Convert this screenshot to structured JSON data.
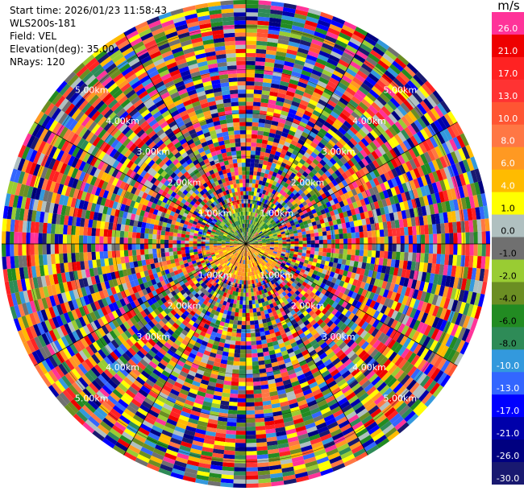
{
  "header": {
    "start_time": "Start time: 2026/01/23 11:58:43",
    "instrument": "WLS200s-181",
    "field": "Field: VEL",
    "elevation": "Elevation(deg): 35.00",
    "nrays": "NRays: 120"
  },
  "colorbar": {
    "unit": "m/s",
    "ticks": [
      "26.0",
      "21.0",
      "17.0",
      "13.0",
      "10.0",
      "8.0",
      "6.0",
      "4.0",
      "1.0",
      "0.0",
      "-1.0",
      "-2.0",
      "-4.0",
      "-6.0",
      "-8.0",
      "-10.0",
      "-13.0",
      "-17.0",
      "-21.0",
      "-26.0",
      "-30.0"
    ],
    "colors": [
      "#ff3399",
      "#ee0000",
      "#ff2222",
      "#ff3333",
      "#ff5533",
      "#ff7744",
      "#ff9922",
      "#ffbb00",
      "#ffff00",
      "#b0c0c0",
      "#707070",
      "#99cc33",
      "#6b8e23",
      "#228b22",
      "#2e8b57",
      "#3399dd",
      "#3366ff",
      "#0000ff",
      "#0000aa",
      "#000080",
      "#191970"
    ]
  },
  "chart_data": {
    "type": "heatmap",
    "projection": "polar PPI",
    "field": "VEL",
    "units": "m/s",
    "elevation_deg": 35.0,
    "nrays": 120,
    "range_rings_km": [
      1.0,
      2.0,
      3.0,
      4.0,
      5.0
    ],
    "ring_labels": [
      "1.00km",
      "2.00km",
      "3.00km",
      "4.00km",
      "5.00km"
    ],
    "max_range_km": 5.6,
    "color_range": [
      -30.0,
      30.0
    ],
    "near_field_pattern": {
      "north_half": "negative velocities (-2 to -8 m/s, greens)",
      "south_half": "positive velocities (4 to 10 m/s, oranges/yellows)",
      "extent_km": 1.0
    },
    "far_field": "noise across full color scale"
  }
}
